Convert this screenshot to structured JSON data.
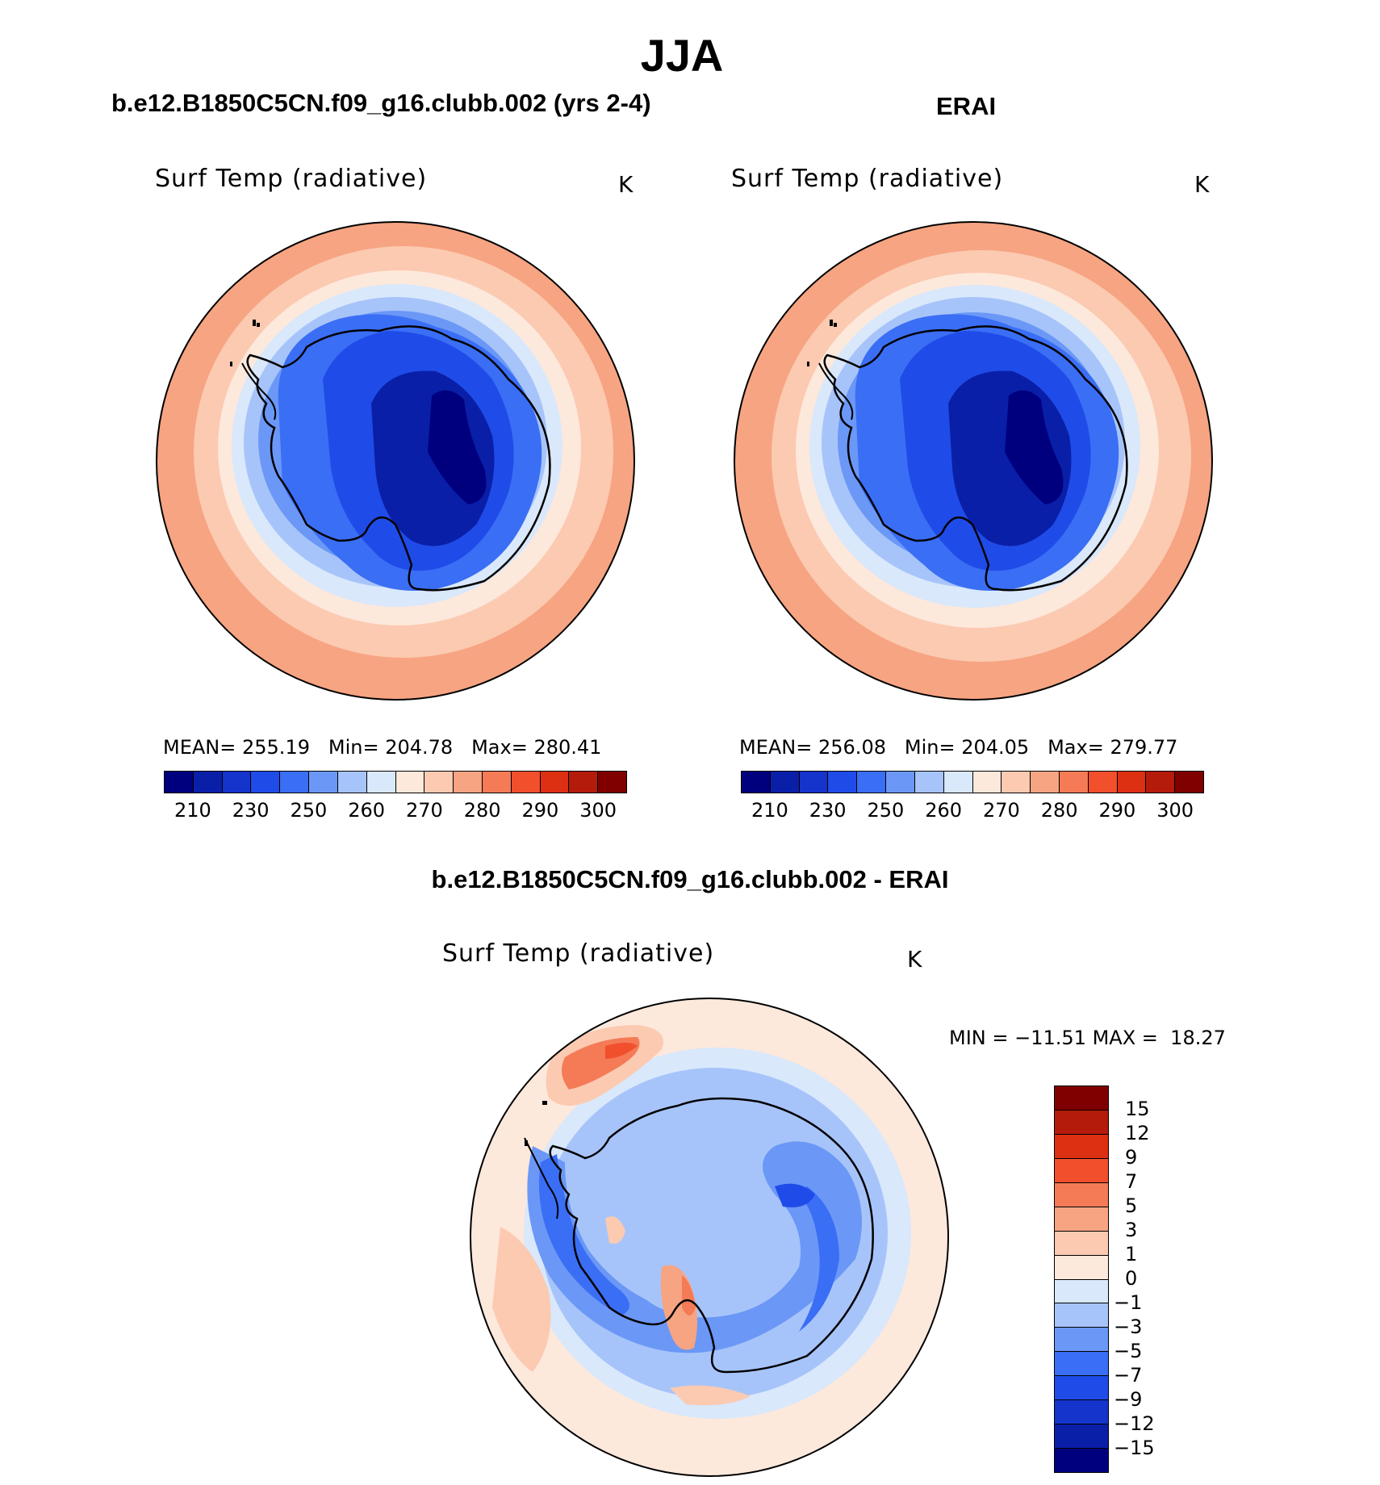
{
  "title": "JJA",
  "panels": {
    "left": {
      "header": "b.e12.B1850C5CN.f09_g16.clubb.002 (yrs 2-4)",
      "variable": "Surf Temp (radiative)",
      "units": "K",
      "stats": {
        "mean_label": "MEAN=",
        "mean": "255.19",
        "min_label": "Min=",
        "min": "204.78",
        "max_label": "Max=",
        "max": "280.41"
      }
    },
    "right": {
      "header": "ERAI",
      "variable": "Surf Temp (radiative)",
      "units": "K",
      "stats": {
        "mean_label": "MEAN=",
        "mean": "256.08",
        "min_label": "Min=",
        "min": "204.05",
        "max_label": "Max=",
        "max": "279.77"
      }
    },
    "diff": {
      "header": "b.e12.B1850C5CN.f09_g16.clubb.002 - ERAI",
      "variable": "Surf Temp (radiative)",
      "units": "K",
      "stats": {
        "min_label": "MIN =",
        "min": "−11.51",
        "max_label": "MAX =",
        "max": "18.27"
      }
    }
  },
  "colorbars": {
    "abs_ticks": [
      "210",
      "230",
      "250",
      "260",
      "270",
      "280",
      "290",
      "300"
    ],
    "abs_colors": [
      "#00007f",
      "#0a1fa8",
      "#1434cc",
      "#1f4ce8",
      "#3a6ef5",
      "#6b98f6",
      "#a7c4fa",
      "#d9e8fb",
      "#fde8dc",
      "#fbcab1",
      "#f7a482",
      "#f47b56",
      "#f24f2d",
      "#dd3012",
      "#b41b0b",
      "#800000"
    ],
    "diff_ticks": [
      "15",
      "12",
      "9",
      "7",
      "5",
      "3",
      "1",
      "0",
      "−1",
      "−3",
      "−5",
      "−7",
      "−9",
      "−12",
      "−15"
    ],
    "diff_colors": [
      "#800000",
      "#b41b0b",
      "#dd3012",
      "#f24f2d",
      "#f47b56",
      "#f7a482",
      "#fbcab1",
      "#fde8dc",
      "#d9e8fb",
      "#a7c4fa",
      "#6b98f6",
      "#3a6ef5",
      "#1f4ce8",
      "#1434cc",
      "#0a1fa8",
      "#00007f"
    ]
  }
}
